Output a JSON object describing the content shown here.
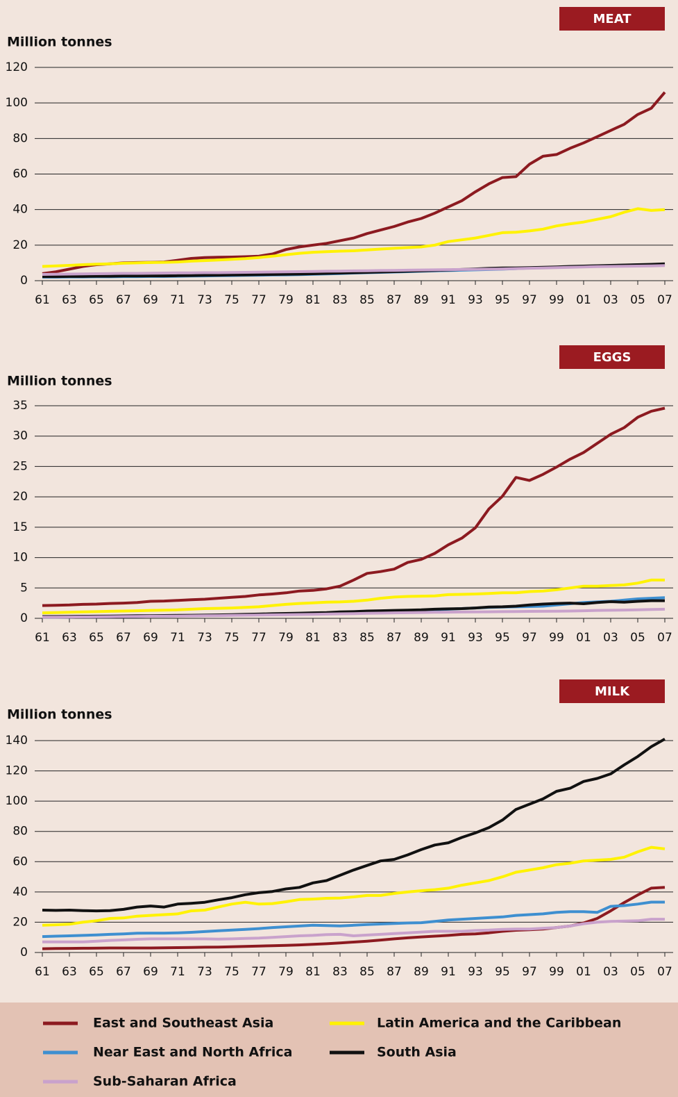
{
  "legend": [
    {
      "name": "East and Southeast Asia",
      "color": "#8c1a20"
    },
    {
      "name": "Latin America and the Caribbean",
      "color": "#fff200"
    },
    {
      "name": "Near East and North Africa",
      "color": "#3e8fd0"
    },
    {
      "name": "South Asia",
      "color": "#111111"
    },
    {
      "name": "Sub-Saharan Africa",
      "color": "#c9a2cc"
    }
  ],
  "chart_data": [
    {
      "type": "line",
      "title": "MEAT",
      "ylabel": "Million tonnes",
      "categories": [
        "61",
        null,
        "63",
        null,
        "65",
        null,
        "67",
        null,
        "69",
        null,
        "71",
        null,
        "73",
        null,
        "75",
        null,
        "77",
        null,
        "79",
        null,
        "81",
        null,
        "83",
        null,
        "85",
        null,
        "87",
        null,
        "89",
        null,
        "91",
        null,
        "93",
        null,
        "95",
        null,
        "97",
        null,
        "99",
        null,
        "01",
        null,
        "03",
        null,
        "05",
        null,
        "07"
      ],
      "ylim": [
        0,
        120
      ],
      "yticks": [
        0,
        20,
        40,
        60,
        80,
        100,
        120
      ],
      "series": [
        {
          "values": [
            4,
            5,
            6.5,
            8,
            9,
            9.5,
            10,
            10.2,
            10.3,
            10.5,
            11.5,
            12.5,
            13,
            13.2,
            13.3,
            13.5,
            13.8,
            15,
            17.5,
            19,
            20,
            21,
            22.5,
            24,
            26.5,
            28.5,
            30.5,
            33,
            35,
            38,
            41.5,
            45,
            50,
            54.5,
            58,
            58.5,
            65.5,
            70,
            71,
            74.5,
            77.5,
            81,
            84.5,
            88,
            93.5,
            97,
            106
          ]
        },
        {
          "values": [
            8,
            8.3,
            8.6,
            9,
            9.3,
            9.5,
            9.8,
            10,
            10.2,
            10.3,
            10.5,
            11,
            11.3,
            11.6,
            12,
            12.4,
            13,
            13.8,
            14.6,
            15.4,
            16,
            16.3,
            16.6,
            16.8,
            17.3,
            17.8,
            18.2,
            18.6,
            19,
            20,
            22,
            23,
            24,
            25.5,
            27,
            27.3,
            28,
            29,
            30.8,
            32,
            33,
            34.5,
            36,
            38.5,
            40.5,
            39.5,
            40
          ]
        },
        {
          "values": [
            2,
            2,
            2.1,
            2.1,
            2.2,
            2.2,
            2.3,
            2.3,
            2.4,
            2.4,
            2.5,
            2.6,
            2.7,
            2.8,
            2.9,
            3,
            3.1,
            3.2,
            3.3,
            3.4,
            3.6,
            3.8,
            4,
            4.3,
            4.5,
            4.7,
            4.9,
            5.1,
            5.3,
            5.5,
            5.7,
            5.9,
            6.1,
            6.3,
            6.5,
            6.8,
            7.1,
            7.3,
            7.6,
            7.9,
            8.1,
            8.3,
            8.5,
            8.7,
            8.9,
            9,
            9.2
          ]
        },
        {
          "values": [
            2.3,
            2.3,
            2.4,
            2.4,
            2.5,
            2.5,
            2.6,
            2.6,
            2.7,
            2.7,
            2.8,
            2.9,
            3,
            3.1,
            3.2,
            3.3,
            3.4,
            3.5,
            3.6,
            3.7,
            3.9,
            4.1,
            4.3,
            4.5,
            4.7,
            4.9,
            5.1,
            5.3,
            5.5,
            5.8,
            6,
            6.3,
            6.6,
            6.9,
            7.1,
            7.2,
            7.3,
            7.5,
            7.7,
            8,
            8.2,
            8.4,
            8.6,
            8.8,
            9,
            9.2,
            9.5
          ]
        },
        {
          "values": [
            3.5,
            3.6,
            3.7,
            3.8,
            3.9,
            4,
            4.1,
            4.1,
            4.2,
            4.3,
            4.4,
            4.4,
            4.5,
            4.5,
            4.6,
            4.7,
            4.8,
            4.9,
            5,
            5.1,
            5.2,
            5.3,
            5.4,
            5.5,
            5.6,
            5.7,
            5.8,
            5.9,
            6,
            6.1,
            6.2,
            6.3,
            6.4,
            6.5,
            6.6,
            6.8,
            7,
            7.1,
            7.3,
            7.5,
            7.7,
            7.9,
            8,
            8.1,
            8.2,
            8.3,
            8.5
          ]
        }
      ]
    },
    {
      "type": "line",
      "title": "EGGS",
      "ylabel": "Million tonnes",
      "categories": [
        "61",
        null,
        "63",
        null,
        "65",
        null,
        "67",
        null,
        "69",
        null,
        "71",
        null,
        "73",
        null,
        "75",
        null,
        "77",
        null,
        "79",
        null,
        "81",
        null,
        "83",
        null,
        "85",
        null,
        "87",
        null,
        "89",
        null,
        "91",
        null,
        "93",
        null,
        "95",
        null,
        "97",
        null,
        "99",
        null,
        "01",
        null,
        "03",
        null,
        "05",
        null,
        "07"
      ],
      "ylim": [
        0,
        35
      ],
      "yticks": [
        0,
        5,
        10,
        15,
        20,
        25,
        30,
        35
      ],
      "series": [
        {
          "values": [
            2.1,
            2.15,
            2.2,
            2.3,
            2.35,
            2.45,
            2.5,
            2.6,
            2.8,
            2.85,
            2.95,
            3.05,
            3.15,
            3.3,
            3.45,
            3.6,
            3.85,
            4,
            4.2,
            4.5,
            4.6,
            4.85,
            5.3,
            6.3,
            7.4,
            7.7,
            8.1,
            9.2,
            9.7,
            10.7,
            12.1,
            13.2,
            14.9,
            18,
            20.1,
            23.2,
            22.7,
            23.7,
            24.9,
            26.2,
            27.3,
            28.8,
            30.3,
            31.4,
            33.1,
            34.1,
            34.6
          ]
        },
        {
          "values": [
            0.9,
            0.95,
            1,
            1.05,
            1.1,
            1.15,
            1.2,
            1.25,
            1.3,
            1.35,
            1.4,
            1.5,
            1.6,
            1.65,
            1.7,
            1.8,
            1.9,
            2.1,
            2.3,
            2.45,
            2.55,
            2.65,
            2.7,
            2.8,
            3,
            3.3,
            3.5,
            3.6,
            3.65,
            3.7,
            3.9,
            3.95,
            4,
            4.1,
            4.2,
            4.2,
            4.4,
            4.5,
            4.7,
            5,
            5.3,
            5.3,
            5.4,
            5.5,
            5.8,
            6.3,
            6.3
          ]
        },
        {
          "values": [
            0.2,
            0.2,
            0.22,
            0.24,
            0.26,
            0.28,
            0.3,
            0.32,
            0.35,
            0.38,
            0.4,
            0.43,
            0.46,
            0.5,
            0.54,
            0.58,
            0.62,
            0.66,
            0.7,
            0.75,
            0.8,
            0.85,
            0.9,
            0.95,
            1,
            1.05,
            1.1,
            1.2,
            1.3,
            1.4,
            1.5,
            1.6,
            1.7,
            1.8,
            1.85,
            1.9,
            1.95,
            2,
            2.2,
            2.4,
            2.6,
            2.7,
            2.8,
            3,
            3.2,
            3.3,
            3.4
          ]
        },
        {
          "values": [
            0.3,
            0.3,
            0.32,
            0.34,
            0.36,
            0.38,
            0.4,
            0.42,
            0.44,
            0.46,
            0.48,
            0.5,
            0.53,
            0.56,
            0.6,
            0.65,
            0.7,
            0.75,
            0.8,
            0.85,
            0.9,
            0.95,
            1.05,
            1.1,
            1.2,
            1.25,
            1.3,
            1.35,
            1.4,
            1.5,
            1.55,
            1.6,
            1.7,
            1.85,
            1.9,
            2,
            2.2,
            2.35,
            2.45,
            2.5,
            2.4,
            2.6,
            2.75,
            2.65,
            2.8,
            2.9,
            2.9
          ]
        },
        {
          "values": [
            0.2,
            0.2,
            0.22,
            0.24,
            0.26,
            0.28,
            0.3,
            0.32,
            0.34,
            0.36,
            0.38,
            0.4,
            0.42,
            0.45,
            0.48,
            0.51,
            0.54,
            0.57,
            0.6,
            0.63,
            0.66,
            0.7,
            0.74,
            0.78,
            0.82,
            0.86,
            0.9,
            0.93,
            0.96,
            1,
            1.02,
            1.04,
            1.06,
            1.08,
            1.1,
            1.12,
            1.14,
            1.16,
            1.18,
            1.2,
            1.25,
            1.3,
            1.33,
            1.36,
            1.4,
            1.45,
            1.5
          ]
        }
      ]
    },
    {
      "type": "line",
      "title": "MILK",
      "ylabel": "Million tonnes",
      "categories": [
        "61",
        null,
        "63",
        null,
        "65",
        null,
        "67",
        null,
        "69",
        null,
        "71",
        null,
        "73",
        null,
        "75",
        null,
        "77",
        null,
        "79",
        null,
        "81",
        null,
        "83",
        null,
        "85",
        null,
        "87",
        null,
        "89",
        null,
        "91",
        null,
        "93",
        null,
        "95",
        null,
        "97",
        null,
        "99",
        null,
        "01",
        null,
        "03",
        null,
        "05",
        null,
        "07"
      ],
      "ylim": [
        0,
        140
      ],
      "yticks": [
        0,
        20,
        40,
        60,
        80,
        100,
        120,
        140
      ],
      "series": [
        {
          "values": [
            2.5,
            2.6,
            2.7,
            2.8,
            2.9,
            3,
            3,
            3,
            3,
            3.1,
            3.2,
            3.3,
            3.5,
            3.6,
            3.8,
            4,
            4.2,
            4.5,
            4.7,
            5,
            5.4,
            5.8,
            6.3,
            6.9,
            7.5,
            8.2,
            9,
            9.7,
            10.3,
            10.8,
            11.3,
            12,
            12.3,
            13,
            14,
            14.7,
            15,
            15.5,
            16.5,
            17.5,
            19.5,
            22.5,
            27.5,
            33,
            38,
            42.5,
            43
          ]
        },
        {
          "values": [
            18,
            18.3,
            18.7,
            20,
            21,
            22.5,
            22.8,
            24,
            24.5,
            25,
            25.5,
            27.5,
            28,
            30,
            32,
            33.2,
            32,
            32.3,
            33.5,
            35,
            35.3,
            35.8,
            36,
            36.7,
            37.7,
            37.7,
            39,
            40,
            40.8,
            41.5,
            42.5,
            44.5,
            46,
            47.5,
            50,
            53,
            54.5,
            56,
            58,
            59,
            60.5,
            61,
            61.5,
            63,
            66.5,
            69.5,
            68.5
          ]
        },
        {
          "values": [
            10.5,
            10.8,
            11,
            11.3,
            11.6,
            12,
            12.3,
            12.7,
            12.8,
            12.8,
            13,
            13.3,
            13.8,
            14.3,
            14.8,
            15.3,
            15.8,
            16.5,
            17,
            17.5,
            18,
            17.8,
            17.6,
            18,
            18.5,
            18.8,
            19.2,
            19.5,
            19.7,
            20.5,
            21.5,
            22,
            22.5,
            23,
            23.5,
            24.5,
            25,
            25.5,
            26.5,
            27,
            27,
            26.5,
            30.5,
            31,
            32,
            33.3,
            33.3
          ]
        },
        {
          "values": [
            28,
            27.8,
            28,
            27.7,
            27.5,
            27.7,
            28.5,
            30,
            30.7,
            30,
            32,
            32.5,
            33.2,
            34.8,
            36.2,
            38.2,
            39.5,
            40.3,
            42,
            43,
            46,
            47.5,
            51,
            54.5,
            57.5,
            60.5,
            61.5,
            64.5,
            68,
            71,
            72.5,
            76,
            79,
            82.5,
            87.5,
            94.5,
            98,
            101.5,
            106.5,
            108.5,
            113,
            115,
            118,
            124,
            129.5,
            136,
            141
          ]
        },
        {
          "values": [
            7,
            7,
            7,
            7,
            7.5,
            8,
            8.3,
            8.7,
            9,
            9,
            9,
            9,
            9,
            8.8,
            9,
            9.3,
            9.5,
            10,
            10.5,
            11,
            11.3,
            11.8,
            12,
            11,
            11.5,
            12,
            12.5,
            13,
            13.5,
            14,
            14,
            14,
            14.5,
            14.8,
            15.3,
            15.5,
            15.5,
            16,
            16.5,
            17.5,
            19,
            20,
            20.5,
            20.8,
            21,
            22,
            22
          ]
        }
      ]
    }
  ]
}
